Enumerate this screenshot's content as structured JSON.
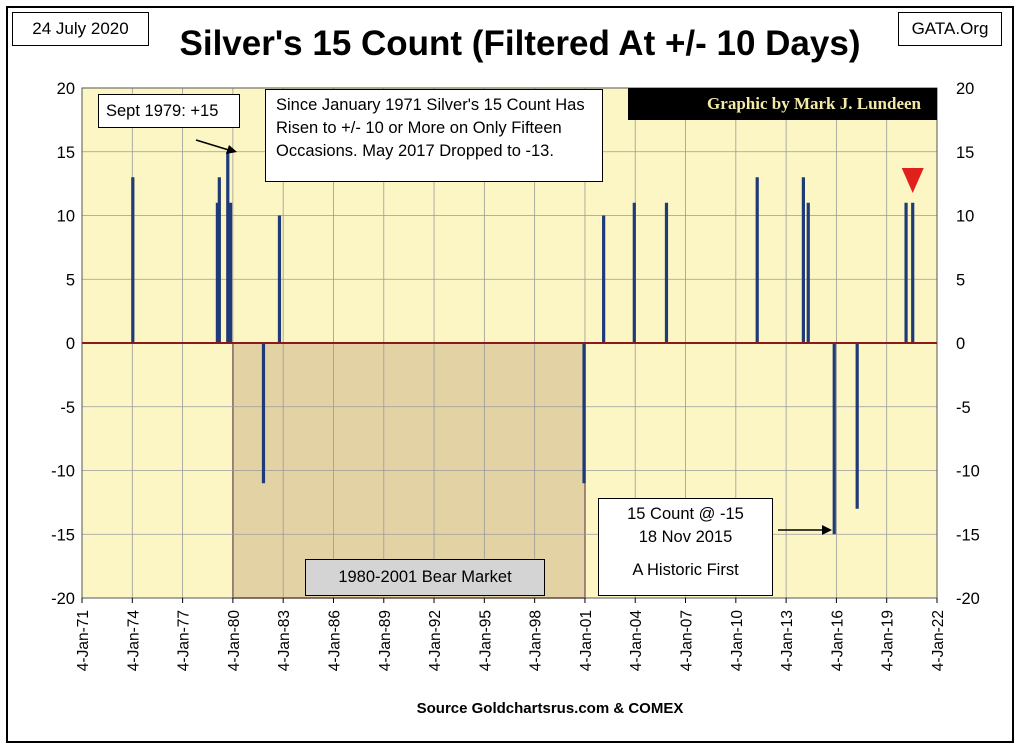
{
  "header": {
    "date": "24 July 2020",
    "site": "GATA.Org"
  },
  "chart_data": {
    "type": "bar",
    "title": "Silver's 15 Count (Filtered At +/- 10 Days)",
    "xlabel": "",
    "ylabel": "",
    "xlim": [
      "1971-01-04",
      "2022-01-04"
    ],
    "ylim": [
      -20,
      20
    ],
    "y_ticks": [
      20,
      15,
      10,
      5,
      0,
      -5,
      -10,
      -15,
      -20
    ],
    "x_ticks": [
      "4-Jan-71",
      "4-Jan-74",
      "4-Jan-77",
      "4-Jan-80",
      "4-Jan-83",
      "4-Jan-86",
      "4-Jan-89",
      "4-Jan-92",
      "4-Jan-95",
      "4-Jan-98",
      "4-Jan-01",
      "4-Jan-04",
      "4-Jan-07",
      "4-Jan-10",
      "4-Jan-13",
      "4-Jan-16",
      "4-Jan-19",
      "4-Jan-22"
    ],
    "grid": true,
    "bear_market": {
      "label": "1980-2001 Bear Market",
      "start": "1980-01-04",
      "end": "2001-01-04"
    },
    "points": [
      {
        "x": "1974-01-15",
        "y": 13
      },
      {
        "x": "1979-02-01",
        "y": 11
      },
      {
        "x": "1979-03-15",
        "y": 13
      },
      {
        "x": "1979-09-15",
        "y": 15
      },
      {
        "x": "1979-11-15",
        "y": 11
      },
      {
        "x": "1981-11-01",
        "y": -11
      },
      {
        "x": "1982-10-15",
        "y": 10
      },
      {
        "x": "2000-12-15",
        "y": -11
      },
      {
        "x": "2002-02-15",
        "y": 10
      },
      {
        "x": "2003-12-15",
        "y": 11
      },
      {
        "x": "2005-11-15",
        "y": 11
      },
      {
        "x": "2011-04-15",
        "y": 13
      },
      {
        "x": "2014-01-15",
        "y": 13
      },
      {
        "x": "2014-05-01",
        "y": 11
      },
      {
        "x": "2015-11-18",
        "y": -15
      },
      {
        "x": "2017-04-01",
        "y": -13
      },
      {
        "x": "2020-03-01",
        "y": 11
      },
      {
        "x": "2020-07-24",
        "y": 11
      }
    ],
    "colors": {
      "bar": "#1f3a78",
      "plot_bg": "#fbf6c4",
      "bear_bg": "#e3d3a4",
      "zero_line": "#8b1a1a",
      "marker": "#e0201a"
    }
  },
  "annotations": {
    "sept_1979": "Sept 1979: +15",
    "since_1971": [
      "Since January 1971 Silver's 15 Count Has",
      "Risen to +/- 10 or More on Only Fifteen",
      "Occasions.   May 2017 Dropped to -13."
    ],
    "count_2015": [
      "15 Count @ -15",
      "18 Nov 2015",
      "",
      "A Historic First"
    ],
    "credit": "Graphic by Mark J. Lundeen"
  },
  "footer": {
    "source": "Source Goldchartsrus.com & COMEX"
  }
}
